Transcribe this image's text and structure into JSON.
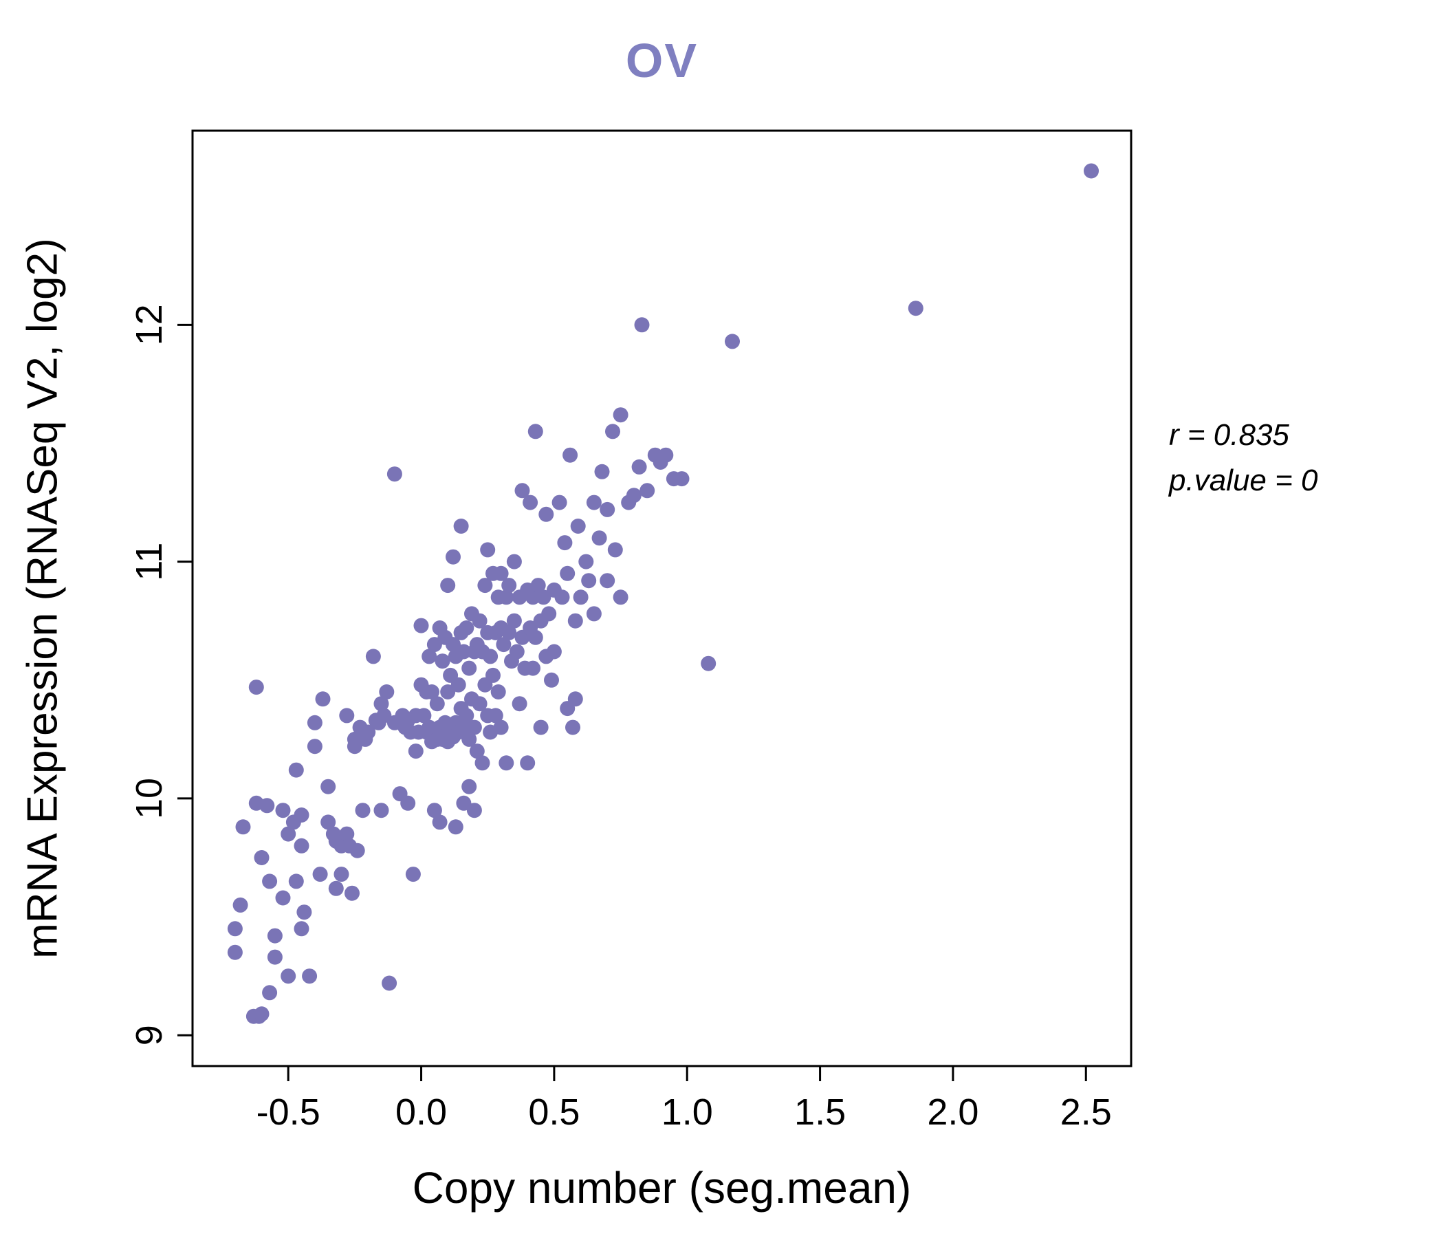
{
  "title": "OV",
  "annotation": {
    "line1": "r = 0.835",
    "line2": "p.value = 0"
  },
  "chart_data": {
    "type": "scatter",
    "title": "OV",
    "title_color": "#7f7fc0",
    "xlabel": "Copy number (seg.mean)",
    "ylabel": "mRNA Expression (RNASeq V2, log2)",
    "xlim": [
      -0.86,
      2.67
    ],
    "ylim": [
      8.87,
      12.82
    ],
    "xtick_values": [
      -0.5,
      0.0,
      0.5,
      1.0,
      1.5,
      2.0,
      2.5
    ],
    "xtick_labels": [
      "-0.5",
      "0.0",
      "0.5",
      "1.0",
      "1.5",
      "2.0",
      "2.5"
    ],
    "ytick_values": [
      9,
      10,
      11,
      12
    ],
    "ytick_labels": [
      "9",
      "10",
      "11",
      "12"
    ],
    "point_color": "#7a74b6",
    "grid": false,
    "legend": null,
    "r": 0.835,
    "p_value": 0,
    "points": [
      [
        -0.7,
        9.45
      ],
      [
        -0.7,
        9.35
      ],
      [
        -0.68,
        9.55
      ],
      [
        -0.67,
        9.88
      ],
      [
        -0.63,
        9.08
      ],
      [
        -0.61,
        9.08
      ],
      [
        -0.6,
        9.09
      ],
      [
        -0.62,
        9.98
      ],
      [
        -0.6,
        9.75
      ],
      [
        -0.58,
        9.97
      ],
      [
        -0.62,
        10.47
      ],
      [
        -0.57,
        9.65
      ],
      [
        -0.55,
        9.42
      ],
      [
        -0.55,
        9.33
      ],
      [
        -0.57,
        9.18
      ],
      [
        -0.52,
        9.95
      ],
      [
        -0.52,
        9.58
      ],
      [
        -0.5,
        9.85
      ],
      [
        -0.5,
        9.25
      ],
      [
        -0.48,
        9.9
      ],
      [
        -0.47,
        9.65
      ],
      [
        -0.45,
        9.93
      ],
      [
        -0.45,
        9.8
      ],
      [
        -0.45,
        9.45
      ],
      [
        -0.44,
        9.52
      ],
      [
        -0.47,
        10.12
      ],
      [
        -0.42,
        9.25
      ],
      [
        -0.4,
        10.32
      ],
      [
        -0.4,
        10.22
      ],
      [
        -0.38,
        9.68
      ],
      [
        -0.37,
        10.42
      ],
      [
        -0.35,
        10.05
      ],
      [
        -0.35,
        9.9
      ],
      [
        -0.33,
        9.85
      ],
      [
        -0.32,
        9.82
      ],
      [
        -0.32,
        9.62
      ],
      [
        -0.3,
        9.8
      ],
      [
        -0.3,
        9.68
      ],
      [
        -0.28,
        10.35
      ],
      [
        -0.28,
        9.85
      ],
      [
        -0.27,
        9.8
      ],
      [
        -0.26,
        9.6
      ],
      [
        -0.25,
        10.25
      ],
      [
        -0.25,
        10.22
      ],
      [
        -0.24,
        9.78
      ],
      [
        -0.23,
        10.3
      ],
      [
        -0.22,
        9.95
      ],
      [
        -0.21,
        10.25
      ],
      [
        -0.2,
        10.28
      ],
      [
        -0.18,
        10.6
      ],
      [
        -0.17,
        10.33
      ],
      [
        -0.16,
        10.32
      ],
      [
        -0.15,
        9.95
      ],
      [
        -0.15,
        10.4
      ],
      [
        -0.14,
        10.35
      ],
      [
        -0.13,
        10.45
      ],
      [
        -0.12,
        9.22
      ],
      [
        -0.1,
        11.37
      ],
      [
        -0.1,
        10.32
      ],
      [
        -0.08,
        10.02
      ],
      [
        -0.07,
        10.35
      ],
      [
        -0.06,
        10.3
      ],
      [
        -0.05,
        9.98
      ],
      [
        -0.05,
        10.33
      ],
      [
        -0.04,
        10.28
      ],
      [
        -0.03,
        9.68
      ],
      [
        -0.02,
        10.35
      ],
      [
        -0.02,
        10.2
      ],
      [
        -0.01,
        10.28
      ],
      [
        0.0,
        10.73
      ],
      [
        0.0,
        10.48
      ],
      [
        0.01,
        10.35
      ],
      [
        0.02,
        10.28
      ],
      [
        0.02,
        10.45
      ],
      [
        0.03,
        10.6
      ],
      [
        0.03,
        10.3
      ],
      [
        0.04,
        10.24
      ],
      [
        0.04,
        10.45
      ],
      [
        0.05,
        10.28
      ],
      [
        0.05,
        10.65
      ],
      [
        0.05,
        9.95
      ],
      [
        0.06,
        10.25
      ],
      [
        0.06,
        10.4
      ],
      [
        0.07,
        10.72
      ],
      [
        0.07,
        10.3
      ],
      [
        0.07,
        9.9
      ],
      [
        0.08,
        10.25
      ],
      [
        0.08,
        10.58
      ],
      [
        0.09,
        10.32
      ],
      [
        0.09,
        10.68
      ],
      [
        0.1,
        10.24
      ],
      [
        0.1,
        10.45
      ],
      [
        0.1,
        10.9
      ],
      [
        0.11,
        10.3
      ],
      [
        0.11,
        10.52
      ],
      [
        0.12,
        10.26
      ],
      [
        0.12,
        10.65
      ],
      [
        0.12,
        11.02
      ],
      [
        0.13,
        10.32
      ],
      [
        0.13,
        10.6
      ],
      [
        0.13,
        9.88
      ],
      [
        0.14,
        10.28
      ],
      [
        0.14,
        10.48
      ],
      [
        0.15,
        10.38
      ],
      [
        0.15,
        10.7
      ],
      [
        0.15,
        11.15
      ],
      [
        0.16,
        10.3
      ],
      [
        0.16,
        10.62
      ],
      [
        0.16,
        9.98
      ],
      [
        0.17,
        10.35
      ],
      [
        0.17,
        10.72
      ],
      [
        0.18,
        10.25
      ],
      [
        0.18,
        10.55
      ],
      [
        0.18,
        10.05
      ],
      [
        0.19,
        10.42
      ],
      [
        0.19,
        10.78
      ],
      [
        0.2,
        10.3
      ],
      [
        0.2,
        10.62
      ],
      [
        0.2,
        9.95
      ],
      [
        0.21,
        10.65
      ],
      [
        0.21,
        10.2
      ],
      [
        0.22,
        10.75
      ],
      [
        0.22,
        10.4
      ],
      [
        0.23,
        10.62
      ],
      [
        0.23,
        10.15
      ],
      [
        0.24,
        10.9
      ],
      [
        0.24,
        10.48
      ],
      [
        0.25,
        10.7
      ],
      [
        0.25,
        10.35
      ],
      [
        0.25,
        11.05
      ],
      [
        0.26,
        10.6
      ],
      [
        0.26,
        10.28
      ],
      [
        0.27,
        10.95
      ],
      [
        0.27,
        10.52
      ],
      [
        0.28,
        10.7
      ],
      [
        0.28,
        10.35
      ],
      [
        0.29,
        10.85
      ],
      [
        0.29,
        10.45
      ],
      [
        0.3,
        10.72
      ],
      [
        0.3,
        10.95
      ],
      [
        0.3,
        10.3
      ],
      [
        0.31,
        10.65
      ],
      [
        0.32,
        10.85
      ],
      [
        0.32,
        10.15
      ],
      [
        0.33,
        10.7
      ],
      [
        0.33,
        10.9
      ],
      [
        0.34,
        10.58
      ],
      [
        0.35,
        10.75
      ],
      [
        0.35,
        11.0
      ],
      [
        0.36,
        10.62
      ],
      [
        0.37,
        10.85
      ],
      [
        0.37,
        10.4
      ],
      [
        0.38,
        10.68
      ],
      [
        0.38,
        11.3
      ],
      [
        0.39,
        10.55
      ],
      [
        0.4,
        10.88
      ],
      [
        0.4,
        10.15
      ],
      [
        0.41,
        10.72
      ],
      [
        0.41,
        11.25
      ],
      [
        0.42,
        10.85
      ],
      [
        0.42,
        10.55
      ],
      [
        0.43,
        11.55
      ],
      [
        0.43,
        10.68
      ],
      [
        0.44,
        10.9
      ],
      [
        0.45,
        10.75
      ],
      [
        0.45,
        10.3
      ],
      [
        0.46,
        10.85
      ],
      [
        0.47,
        10.6
      ],
      [
        0.47,
        11.2
      ],
      [
        0.48,
        10.78
      ],
      [
        0.49,
        10.5
      ],
      [
        0.5,
        10.88
      ],
      [
        0.5,
        10.62
      ],
      [
        0.52,
        11.25
      ],
      [
        0.53,
        10.85
      ],
      [
        0.54,
        11.08
      ],
      [
        0.55,
        10.95
      ],
      [
        0.55,
        10.38
      ],
      [
        0.56,
        11.45
      ],
      [
        0.57,
        10.3
      ],
      [
        0.58,
        10.42
      ],
      [
        0.58,
        10.75
      ],
      [
        0.59,
        11.15
      ],
      [
        0.6,
        10.85
      ],
      [
        0.62,
        11.0
      ],
      [
        0.63,
        10.92
      ],
      [
        0.65,
        11.25
      ],
      [
        0.65,
        10.78
      ],
      [
        0.67,
        11.1
      ],
      [
        0.68,
        11.38
      ],
      [
        0.7,
        11.22
      ],
      [
        0.7,
        10.92
      ],
      [
        0.72,
        11.55
      ],
      [
        0.73,
        11.05
      ],
      [
        0.75,
        11.62
      ],
      [
        0.75,
        10.85
      ],
      [
        0.78,
        11.25
      ],
      [
        0.8,
        11.28
      ],
      [
        0.82,
        11.4
      ],
      [
        0.83,
        12.0
      ],
      [
        0.85,
        11.3
      ],
      [
        0.88,
        11.45
      ],
      [
        0.9,
        11.42
      ],
      [
        0.92,
        11.45
      ],
      [
        0.95,
        11.35
      ],
      [
        0.98,
        11.35
      ],
      [
        1.08,
        10.57
      ],
      [
        1.17,
        11.93
      ],
      [
        1.86,
        12.07
      ],
      [
        2.52,
        12.65
      ]
    ]
  }
}
